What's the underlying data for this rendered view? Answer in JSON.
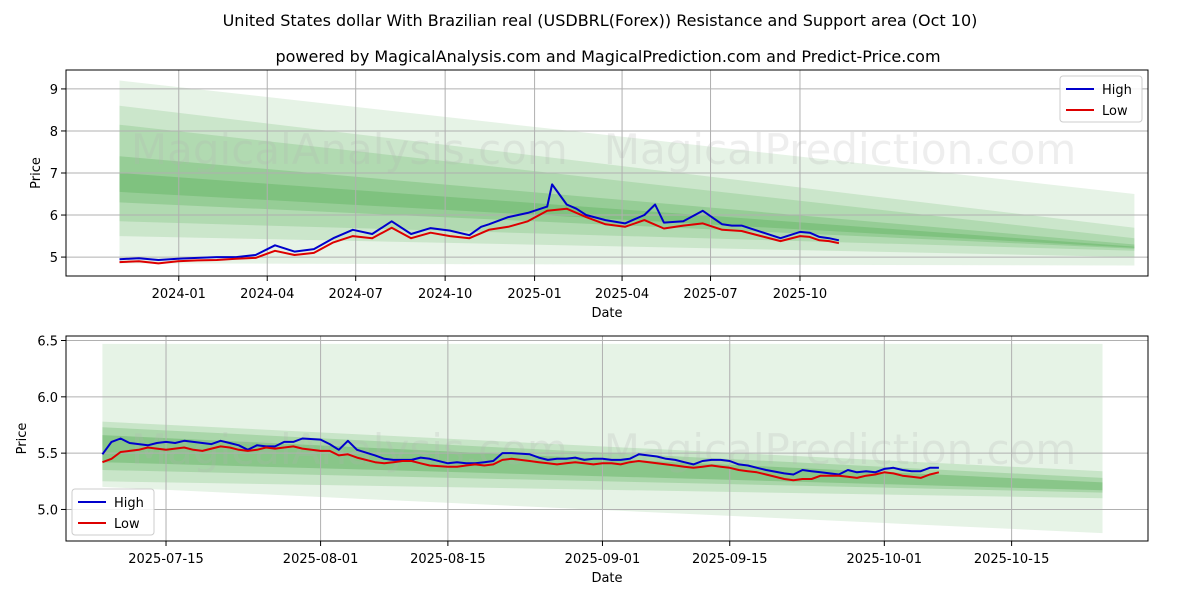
{
  "title": "United States dollar With Brazilian real (USDBRL(Forex)) Resistance and Support area (Oct 10)",
  "subtitle": "powered by MagicalAnalysis.com and MagicalPrediction.com and Predict-Price.com",
  "watermarks": [
    "MagicalAnalysis.com",
    "MagicalPrediction.com"
  ],
  "colors": {
    "high": "#0000cc",
    "low": "#dd0000",
    "band": "#2e9c2e",
    "grid": "#b0b0b0"
  },
  "chart_data": [
    {
      "type": "line",
      "title": "",
      "xlabel": "Date",
      "ylabel": "Price",
      "ylim": [
        4.55,
        9.45
      ],
      "xlim_days": [
        -55,
        1058
      ],
      "x_origin": "2023-11-01",
      "yticks": [
        5,
        6,
        7,
        8,
        9
      ],
      "ytick_labels": [
        "5",
        "6",
        "7",
        "8",
        "9"
      ],
      "xticks_days": [
        61,
        152,
        243,
        335,
        427,
        517,
        608,
        700
      ],
      "xtick_labels": [
        "2024-01",
        "2024-04",
        "2024-07",
        "2024-10",
        "2025-01",
        "2025-04",
        "2025-07",
        "2025-10"
      ],
      "legend": {
        "position": "top-right",
        "entries": [
          "High",
          "Low"
        ]
      },
      "grid": true,
      "bands": [
        {
          "x": [
            0,
            1044
          ],
          "top": [
            9.2,
            6.5
          ],
          "bottom": [
            4.85,
            4.8
          ],
          "opacity": 0.12
        },
        {
          "x": [
            0,
            1044
          ],
          "top": [
            8.6,
            5.7
          ],
          "bottom": [
            5.5,
            5.0
          ],
          "opacity": 0.14
        },
        {
          "x": [
            0,
            1044
          ],
          "top": [
            8.15,
            5.45
          ],
          "bottom": [
            5.85,
            5.15
          ],
          "opacity": 0.16
        },
        {
          "x": [
            0,
            1044
          ],
          "top": [
            7.4,
            5.3
          ],
          "bottom": [
            6.3,
            5.2
          ],
          "opacity": 0.2
        },
        {
          "x": [
            0,
            1044
          ],
          "top": [
            7.0,
            5.25
          ],
          "bottom": [
            6.55,
            5.22
          ],
          "opacity": 0.22
        }
      ],
      "series": [
        {
          "name": "High",
          "x": [
            0,
            20,
            40,
            60,
            80,
            100,
            120,
            140,
            160,
            180,
            200,
            220,
            240,
            260,
            280,
            300,
            320,
            340,
            360,
            372,
            380,
            400,
            420,
            440,
            445,
            460,
            470,
            480,
            500,
            520,
            540,
            551,
            560,
            580,
            600,
            620,
            630,
            640,
            660,
            680,
            700,
            710,
            720,
            730,
            740
          ],
          "values": [
            4.95,
            4.97,
            4.93,
            4.96,
            4.98,
            5.0,
            5.0,
            5.05,
            5.28,
            5.13,
            5.19,
            5.45,
            5.65,
            5.55,
            5.85,
            5.55,
            5.69,
            5.63,
            5.52,
            5.72,
            5.78,
            5.95,
            6.05,
            6.2,
            6.73,
            6.25,
            6.15,
            6.0,
            5.88,
            5.8,
            6.0,
            6.25,
            5.82,
            5.85,
            6.1,
            5.78,
            5.75,
            5.75,
            5.6,
            5.45,
            5.6,
            5.58,
            5.48,
            5.45,
            5.4
          ]
        },
        {
          "name": "Low",
          "x": [
            0,
            20,
            40,
            60,
            80,
            100,
            120,
            140,
            160,
            180,
            200,
            220,
            240,
            260,
            280,
            300,
            320,
            340,
            360,
            380,
            400,
            420,
            440,
            460,
            480,
            500,
            520,
            540,
            560,
            580,
            600,
            620,
            640,
            660,
            680,
            700,
            710,
            720,
            730,
            740
          ],
          "values": [
            4.88,
            4.9,
            4.85,
            4.9,
            4.92,
            4.93,
            4.96,
            4.98,
            5.15,
            5.05,
            5.1,
            5.35,
            5.5,
            5.45,
            5.7,
            5.45,
            5.58,
            5.5,
            5.45,
            5.65,
            5.72,
            5.85,
            6.1,
            6.15,
            5.95,
            5.78,
            5.72,
            5.88,
            5.68,
            5.75,
            5.8,
            5.65,
            5.62,
            5.5,
            5.38,
            5.5,
            5.48,
            5.4,
            5.38,
            5.33
          ]
        }
      ]
    },
    {
      "type": "line",
      "title": "",
      "xlabel": "Date",
      "ylabel": "Price",
      "ylim": [
        4.72,
        6.54
      ],
      "xlim_days": [
        -4,
        115
      ],
      "x_origin": "2025-07-08",
      "yticks": [
        5.0,
        5.5,
        6.0,
        6.5
      ],
      "ytick_labels": [
        "5.0",
        "5.5",
        "6.0",
        "6.5"
      ],
      "xticks_days": [
        7,
        24,
        38,
        55,
        69,
        86,
        100
      ],
      "xtick_labels": [
        "2025-07-15",
        "2025-08-01",
        "2025-08-15",
        "2025-09-01",
        "2025-09-15",
        "2025-10-01",
        "2025-10-15"
      ],
      "legend": {
        "position": "bottom-left",
        "entries": [
          "High",
          "Low"
        ]
      },
      "grid": true,
      "bands": [
        {
          "x": [
            0,
            110
          ],
          "top": [
            6.47,
            6.47
          ],
          "bottom": [
            5.2,
            4.79
          ],
          "opacity": 0.12
        },
        {
          "x": [
            0,
            110
          ],
          "top": [
            5.78,
            5.34
          ],
          "bottom": [
            5.25,
            5.1
          ],
          "opacity": 0.16
        },
        {
          "x": [
            0,
            110
          ],
          "top": [
            5.73,
            5.28
          ],
          "bottom": [
            5.35,
            5.15
          ],
          "opacity": 0.2
        },
        {
          "x": [
            0,
            110
          ],
          "top": [
            5.66,
            5.24
          ],
          "bottom": [
            5.42,
            5.17
          ],
          "opacity": 0.26
        }
      ],
      "series": [
        {
          "name": "High",
          "x": [
            0,
            1,
            2,
            3,
            4,
            5,
            6,
            7,
            8,
            9,
            10,
            11,
            12,
            13,
            14,
            15,
            16,
            17,
            18,
            19,
            20,
            21,
            22,
            24,
            25,
            26,
            27,
            28,
            30,
            31,
            32,
            33,
            34,
            35,
            36,
            38,
            39,
            40,
            41,
            42,
            43,
            44,
            45,
            47,
            48,
            49,
            50,
            51,
            52,
            53,
            54,
            55,
            56,
            57,
            58,
            59,
            61,
            62,
            63,
            64,
            65,
            66,
            67,
            68,
            69,
            70,
            71,
            72,
            73,
            75,
            76,
            77,
            78,
            79,
            80,
            81,
            82,
            83,
            84,
            85,
            86,
            87,
            88,
            89,
            90,
            91,
            92
          ],
          "values": [
            5.49,
            5.6,
            5.63,
            5.59,
            5.58,
            5.57,
            5.59,
            5.6,
            5.59,
            5.61,
            5.6,
            5.59,
            5.58,
            5.61,
            5.59,
            5.57,
            5.53,
            5.57,
            5.56,
            5.56,
            5.6,
            5.6,
            5.63,
            5.62,
            5.58,
            5.53,
            5.61,
            5.53,
            5.48,
            5.45,
            5.44,
            5.44,
            5.44,
            5.46,
            5.45,
            5.41,
            5.42,
            5.41,
            5.41,
            5.42,
            5.43,
            5.5,
            5.5,
            5.49,
            5.46,
            5.44,
            5.45,
            5.45,
            5.46,
            5.44,
            5.45,
            5.45,
            5.44,
            5.44,
            5.45,
            5.49,
            5.47,
            5.45,
            5.44,
            5.42,
            5.4,
            5.43,
            5.44,
            5.44,
            5.43,
            5.4,
            5.39,
            5.37,
            5.35,
            5.32,
            5.31,
            5.35,
            5.34,
            5.33,
            5.32,
            5.31,
            5.35,
            5.33,
            5.34,
            5.33,
            5.36,
            5.37,
            5.35,
            5.34,
            5.34,
            5.37,
            5.37
          ]
        },
        {
          "name": "Low",
          "x": [
            0,
            1,
            2,
            3,
            4,
            5,
            6,
            7,
            8,
            9,
            10,
            11,
            12,
            13,
            14,
            15,
            16,
            17,
            18,
            19,
            20,
            21,
            22,
            24,
            25,
            26,
            27,
            28,
            30,
            31,
            32,
            33,
            34,
            35,
            36,
            38,
            39,
            40,
            41,
            42,
            43,
            44,
            45,
            47,
            48,
            49,
            50,
            51,
            52,
            53,
            54,
            55,
            56,
            57,
            58,
            59,
            61,
            62,
            63,
            64,
            65,
            66,
            67,
            68,
            69,
            70,
            71,
            72,
            73,
            75,
            76,
            77,
            78,
            79,
            80,
            81,
            82,
            83,
            84,
            85,
            86,
            87,
            88,
            89,
            90,
            91,
            92
          ],
          "values": [
            5.42,
            5.45,
            5.51,
            5.52,
            5.53,
            5.55,
            5.54,
            5.53,
            5.54,
            5.55,
            5.53,
            5.52,
            5.54,
            5.56,
            5.55,
            5.53,
            5.52,
            5.53,
            5.55,
            5.54,
            5.55,
            5.56,
            5.54,
            5.52,
            5.52,
            5.48,
            5.49,
            5.46,
            5.42,
            5.41,
            5.42,
            5.43,
            5.43,
            5.41,
            5.39,
            5.38,
            5.38,
            5.39,
            5.4,
            5.39,
            5.4,
            5.44,
            5.45,
            5.43,
            5.42,
            5.41,
            5.4,
            5.41,
            5.42,
            5.41,
            5.4,
            5.41,
            5.41,
            5.4,
            5.42,
            5.43,
            5.41,
            5.4,
            5.39,
            5.38,
            5.37,
            5.38,
            5.39,
            5.38,
            5.37,
            5.35,
            5.34,
            5.33,
            5.31,
            5.27,
            5.26,
            5.27,
            5.27,
            5.3,
            5.3,
            5.3,
            5.29,
            5.28,
            5.3,
            5.31,
            5.33,
            5.32,
            5.3,
            5.29,
            5.28,
            5.31,
            5.33
          ]
        }
      ]
    }
  ]
}
